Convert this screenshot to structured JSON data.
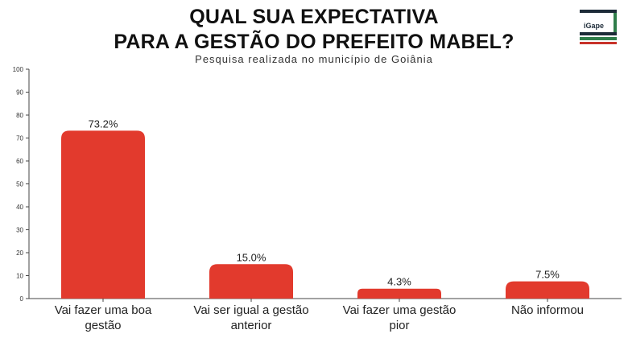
{
  "title": {
    "line1": "QUAL SUA EXPECTATIVA",
    "line2": "PARA A GESTÃO DO PREFEITO MABEL?"
  },
  "subtitle": "Pesquisa realizada no município de Goiânia",
  "logo": {
    "text": "iGape"
  },
  "colors": {
    "bar": "#e23a2d",
    "axis": "#444444",
    "text": "#222222"
  },
  "chart_data": {
    "type": "bar",
    "categories": [
      [
        "Vai fazer uma boa",
        "gestão"
      ],
      [
        "Vai ser igual a gestão",
        "anterior"
      ],
      [
        "Vai fazer uma gestão",
        "pior"
      ],
      [
        "Não informou"
      ]
    ],
    "values": [
      73.2,
      15.0,
      4.3,
      7.5
    ],
    "value_labels": [
      "73.2%",
      "15.0%",
      "4.3%",
      "7.5%"
    ],
    "ylim": [
      0,
      100
    ],
    "yticks": [
      0,
      10,
      20,
      30,
      40,
      50,
      60,
      70,
      80,
      90,
      100
    ],
    "grid": false
  }
}
